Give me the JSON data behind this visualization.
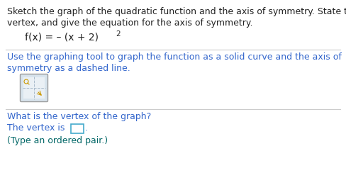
{
  "background_color": "#ffffff",
  "line1_text": "Sketch the graph of the quadratic function and the axis of symmetry. State the",
  "line2_text": "vertex, and give the equation for the axis of symmetry.",
  "formula_text": "f(x) = – (x + 2)",
  "formula_sup": "2",
  "instruction_line1": "Use the graphing tool to graph the function as a solid curve and the axis of",
  "instruction_line2": "symmetry as a dashed line.",
  "question_text": "What is the vertex of the graph?",
  "answer_prefix": "The vertex is",
  "answer_hint": "(Type an ordered pair.)",
  "dark_color": "#222222",
  "blue_color": "#3366cc",
  "teal_color": "#006666",
  "divider_color": "#cccccc",
  "icon_border_color": "#aaaaaa",
  "icon_fill_color": "#dde8f0",
  "answer_box_color": "#44aacc",
  "font_size": 9.0,
  "font_size_formula": 10.0
}
